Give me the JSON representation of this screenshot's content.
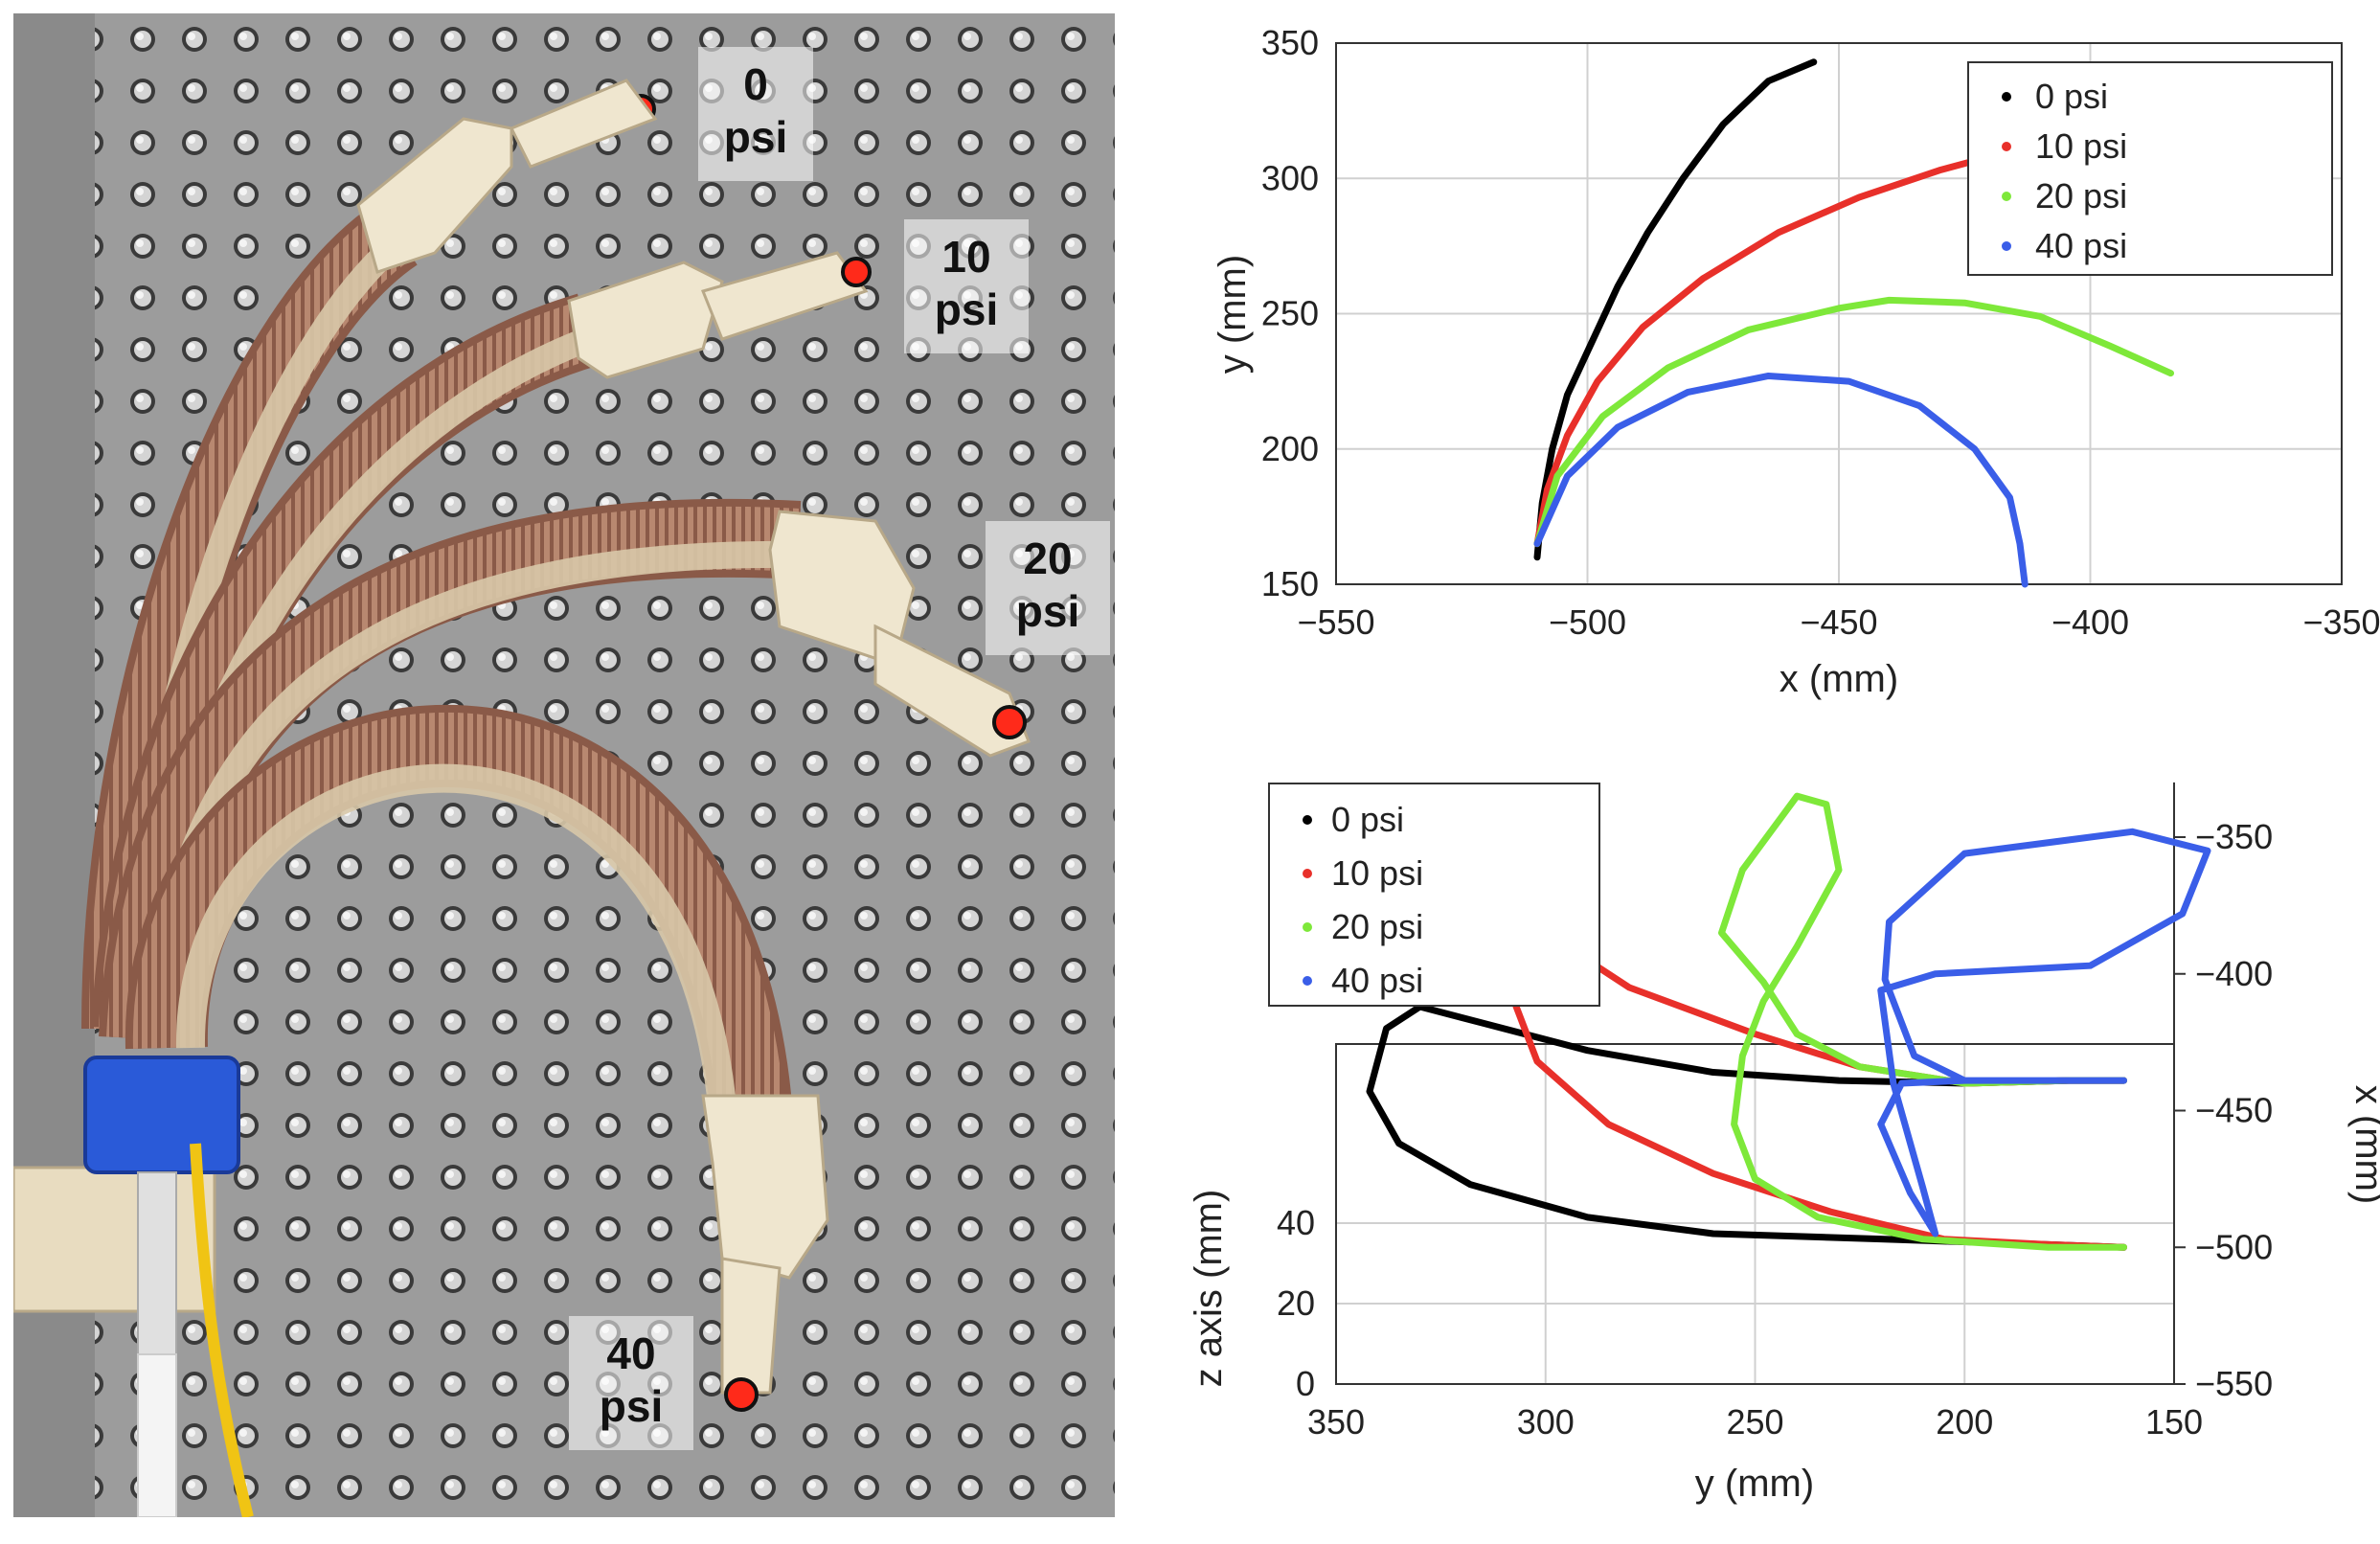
{
  "photo": {
    "labels": [
      {
        "line1": "0",
        "line2": "psi"
      },
      {
        "line1": "10",
        "line2": "psi"
      },
      {
        "line1": "20",
        "line2": "psi"
      },
      {
        "line1": "40",
        "line2": "psi"
      }
    ]
  },
  "colors": {
    "0 psi": "#000000",
    "10 psi": "#e8302a",
    "20 psi": "#7ee83a",
    "40 psi": "#3a5ee8"
  },
  "chart_data": [
    {
      "type": "line",
      "xlabel": "x (mm)",
      "ylabel": "y (mm)",
      "xlim": [
        -550,
        -350
      ],
      "ylim": [
        150,
        350
      ],
      "xticks": [
        -550,
        -500,
        -450,
        -400,
        -350
      ],
      "yticks": [
        150,
        200,
        250,
        300,
        350
      ],
      "grid": true,
      "legend_position": "top-right",
      "series": [
        {
          "name": "0 psi",
          "color": "#000000",
          "points": [
            [
              -510,
              160
            ],
            [
              -509,
              180
            ],
            [
              -507,
              200
            ],
            [
              -504,
              220
            ],
            [
              -499,
              240
            ],
            [
              -494,
              260
            ],
            [
              -488,
              280
            ],
            [
              -481,
              300
            ],
            [
              -473,
              320
            ],
            [
              -464,
              336
            ],
            [
              -455,
              343
            ]
          ]
        },
        {
          "name": "10 psi",
          "color": "#e8302a",
          "points": [
            [
              -510,
              165
            ],
            [
              -508,
              185
            ],
            [
              -504,
              205
            ],
            [
              -498,
              225
            ],
            [
              -489,
              245
            ],
            [
              -477,
              263
            ],
            [
              -462,
              280
            ],
            [
              -446,
              293
            ],
            [
              -430,
              303
            ],
            [
              -420,
              308
            ],
            [
              -413,
              312
            ]
          ]
        },
        {
          "name": "20 psi",
          "color": "#7ee83a",
          "points": [
            [
              -510,
              165
            ],
            [
              -506,
              190
            ],
            [
              -497,
              212
            ],
            [
              -484,
              230
            ],
            [
              -468,
              244
            ],
            [
              -450,
              252
            ],
            [
              -440,
              255
            ],
            [
              -425,
              254
            ],
            [
              -410,
              249
            ],
            [
              -396,
              238
            ],
            [
              -384,
              228
            ]
          ]
        },
        {
          "name": "40 psi",
          "color": "#3a5ee8",
          "points": [
            [
              -510,
              165
            ],
            [
              -504,
              190
            ],
            [
              -494,
              208
            ],
            [
              -480,
              221
            ],
            [
              -464,
              227
            ],
            [
              -448,
              225
            ],
            [
              -434,
              216
            ],
            [
              -423,
              200
            ],
            [
              -416,
              182
            ],
            [
              -414,
              165
            ],
            [
              -413,
              150
            ]
          ]
        }
      ]
    },
    {
      "type": "line",
      "xlabel": "y (mm)",
      "ylabel": "z axis (mm)",
      "ylabel_right": "x (mm)",
      "xlim": [
        350,
        150
      ],
      "ylim": [
        0,
        50
      ],
      "xticks": [
        350,
        300,
        250,
        200,
        150
      ],
      "yticks": [
        0,
        20,
        40
      ],
      "yticks_right": [
        -350,
        -400,
        -450,
        -500,
        -550
      ],
      "ylim_right": [
        -550,
        -330
      ],
      "grid": true,
      "legend_position": "top-left",
      "series": [
        {
          "name": "0 psi",
          "color": "#000000",
          "points": [
            [
              162,
              -500
            ],
            [
              180,
              -499
            ],
            [
              220,
              -497
            ],
            [
              260,
              -495
            ],
            [
              290,
              -489
            ],
            [
              318,
              -477
            ],
            [
              335,
              -462
            ],
            [
              342,
              -443
            ],
            [
              338,
              -420
            ],
            [
              330,
              -412
            ],
            [
              315,
              -418
            ],
            [
              290,
              -428
            ],
            [
              260,
              -436
            ],
            [
              230,
              -439
            ],
            [
              200,
              -440
            ],
            [
              175,
              -439
            ],
            [
              162,
              -439
            ]
          ]
        },
        {
          "name": "10 psi",
          "color": "#e8302a",
          "points": [
            [
              162,
              -500
            ],
            [
              180,
              -499
            ],
            [
              205,
              -497
            ],
            [
              232,
              -487
            ],
            [
              260,
              -473
            ],
            [
              285,
              -455
            ],
            [
              302,
              -432
            ],
            [
              310,
              -400
            ],
            [
              310,
              -387
            ],
            [
              306,
              -368
            ],
            [
              300,
              -385
            ],
            [
              280,
              -405
            ],
            [
              250,
              -422
            ],
            [
              225,
              -434
            ],
            [
              200,
              -440
            ],
            [
              175,
              -439
            ],
            [
              162,
              -439
            ]
          ]
        },
        {
          "name": "20 psi",
          "color": "#7ee83a",
          "points": [
            [
              162,
              -500
            ],
            [
              180,
              -500
            ],
            [
              210,
              -497
            ],
            [
              235,
              -489
            ],
            [
              250,
              -475
            ],
            [
              255,
              -455
            ],
            [
              253,
              -430
            ],
            [
              248,
              -410
            ],
            [
              240,
              -390
            ],
            [
              230,
              -362
            ],
            [
              233,
              -338
            ],
            [
              240,
              -335
            ],
            [
              253,
              -362
            ],
            [
              258,
              -385
            ],
            [
              248,
              -403
            ],
            [
              240,
              -422
            ],
            [
              225,
              -434
            ],
            [
              200,
              -440
            ],
            [
              175,
              -439
            ],
            [
              162,
              -439
            ]
          ]
        },
        {
          "name": "40 psi",
          "color": "#3a5ee8",
          "points": [
            [
              162,
              -439
            ],
            [
              180,
              -439
            ],
            [
              200,
              -439
            ],
            [
              215,
              -440
            ],
            [
              220,
              -455
            ],
            [
              213,
              -480
            ],
            [
              207,
              -495
            ],
            [
              210,
              -478
            ],
            [
              217,
              -440
            ],
            [
              220,
              -406
            ],
            [
              207,
              -400
            ],
            [
              170,
              -397
            ],
            [
              148,
              -378
            ],
            [
              142,
              -355
            ],
            [
              160,
              -348
            ],
            [
              200,
              -356
            ],
            [
              218,
              -381
            ],
            [
              219,
              -402
            ],
            [
              212,
              -430
            ],
            [
              200,
              -439
            ],
            [
              175,
              -439
            ],
            [
              162,
              -439
            ]
          ]
        }
      ]
    }
  ]
}
